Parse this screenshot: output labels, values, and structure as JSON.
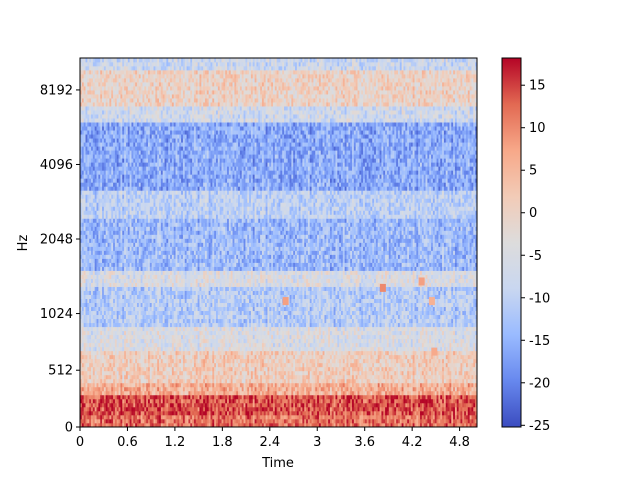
{
  "chart_data": {
    "type": "heatmap",
    "title": "",
    "xlabel": "Time",
    "ylabel": "Hz",
    "x_ticks": [
      "0",
      "0.6",
      "1.2",
      "1.8",
      "2.4",
      "3",
      "3.6",
      "4.2",
      "4.8"
    ],
    "y_ticks": [
      "0",
      "512",
      "1024",
      "2048",
      "4096",
      "8192"
    ],
    "colorbar_ticks": [
      "15",
      "10",
      "5",
      "0",
      "-5",
      "-10",
      "-15",
      "-20",
      "-25"
    ],
    "xlim": [
      0,
      5.02
    ],
    "ylim": [
      0,
      11025
    ],
    "value_range": [
      -25.2,
      18.2
    ],
    "colormap": [
      "#3b4cc0",
      "#6788ee",
      "#9abbff",
      "#c9d7f0",
      "#dddcdc",
      "#f2cbb7",
      "#f7a889",
      "#e26952",
      "#b40426"
    ],
    "columns": 216,
    "frequency_bands": [
      {
        "from_hz": 0,
        "to_hz": 100,
        "level_db": 12
      },
      {
        "from_hz": 100,
        "to_hz": 280,
        "level_db": 14
      },
      {
        "from_hz": 280,
        "to_hz": 400,
        "level_db": 6
      },
      {
        "from_hz": 400,
        "to_hz": 700,
        "level_db": 1
      },
      {
        "from_hz": 700,
        "to_hz": 900,
        "level_db": -5
      },
      {
        "from_hz": 900,
        "to_hz": 1300,
        "level_db": -11
      },
      {
        "from_hz": 1300,
        "to_hz": 1500,
        "level_db": -5
      },
      {
        "from_hz": 1500,
        "to_hz": 2500,
        "level_db": -14
      },
      {
        "from_hz": 2500,
        "to_hz": 3200,
        "level_db": -10
      },
      {
        "from_hz": 3200,
        "to_hz": 6000,
        "level_db": -16
      },
      {
        "from_hz": 6000,
        "to_hz": 7000,
        "level_db": -7
      },
      {
        "from_hz": 7000,
        "to_hz": 10000,
        "level_db": 0
      },
      {
        "from_hz": 10000,
        "to_hz": 11025,
        "level_db": -8
      }
    ],
    "hot_spots": [
      {
        "time": 2.6,
        "hz": 1150,
        "level_db": 8
      },
      {
        "time": 3.83,
        "hz": 1300,
        "level_db": 10
      },
      {
        "time": 4.32,
        "hz": 1380,
        "level_db": 8
      },
      {
        "time": 4.45,
        "hz": 1150,
        "level_db": 6
      },
      {
        "time": 4.48,
        "hz": 680,
        "level_db": 7
      }
    ]
  }
}
